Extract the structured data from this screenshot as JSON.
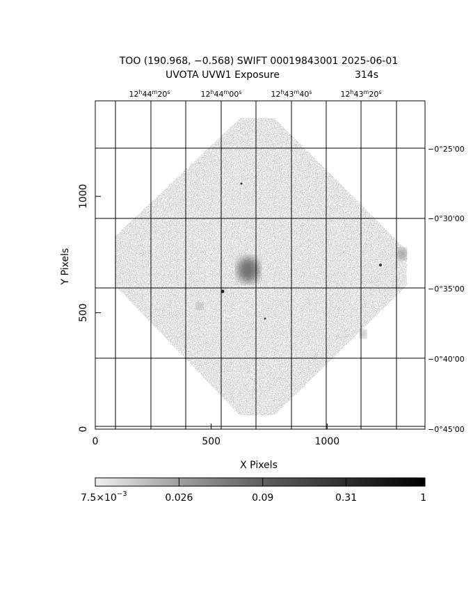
{
  "title": "TOO (190.968, −0.568) SWIFT 00019843001 2025-06-01",
  "subtitle": "UVOTA UVW1 Exposure",
  "exposure": "314s",
  "ra_labels": [
    [
      "12",
      "h",
      "44",
      "m",
      "20",
      "s"
    ],
    [
      "12",
      "h",
      "44",
      "m",
      "00",
      "s"
    ],
    [
      "12",
      "h",
      "43",
      "m",
      "40",
      "s"
    ],
    [
      "12",
      "h",
      "43",
      "m",
      "20",
      "s"
    ]
  ],
  "dec_labels": [
    "−0°25'00",
    "−0°30'00",
    "−0°35'00",
    "−0°40'00",
    "−0°45'00"
  ],
  "x_axis": {
    "label": "X Pixels",
    "lim": [
      0,
      1422
    ],
    "ticks": [
      0,
      500,
      1000
    ]
  },
  "y_axis": {
    "label": "Y Pixels",
    "lim": [
      0,
      1410
    ],
    "ticks": [
      0,
      500,
      1000
    ]
  },
  "colorbar": {
    "log": true,
    "lim": [
      0.0075,
      1
    ],
    "ticks": [
      {
        "value": 0.0075,
        "label": "7.5×10",
        "exponent": "−3"
      },
      0.026,
      0.09,
      0.31,
      1
    ]
  }
}
